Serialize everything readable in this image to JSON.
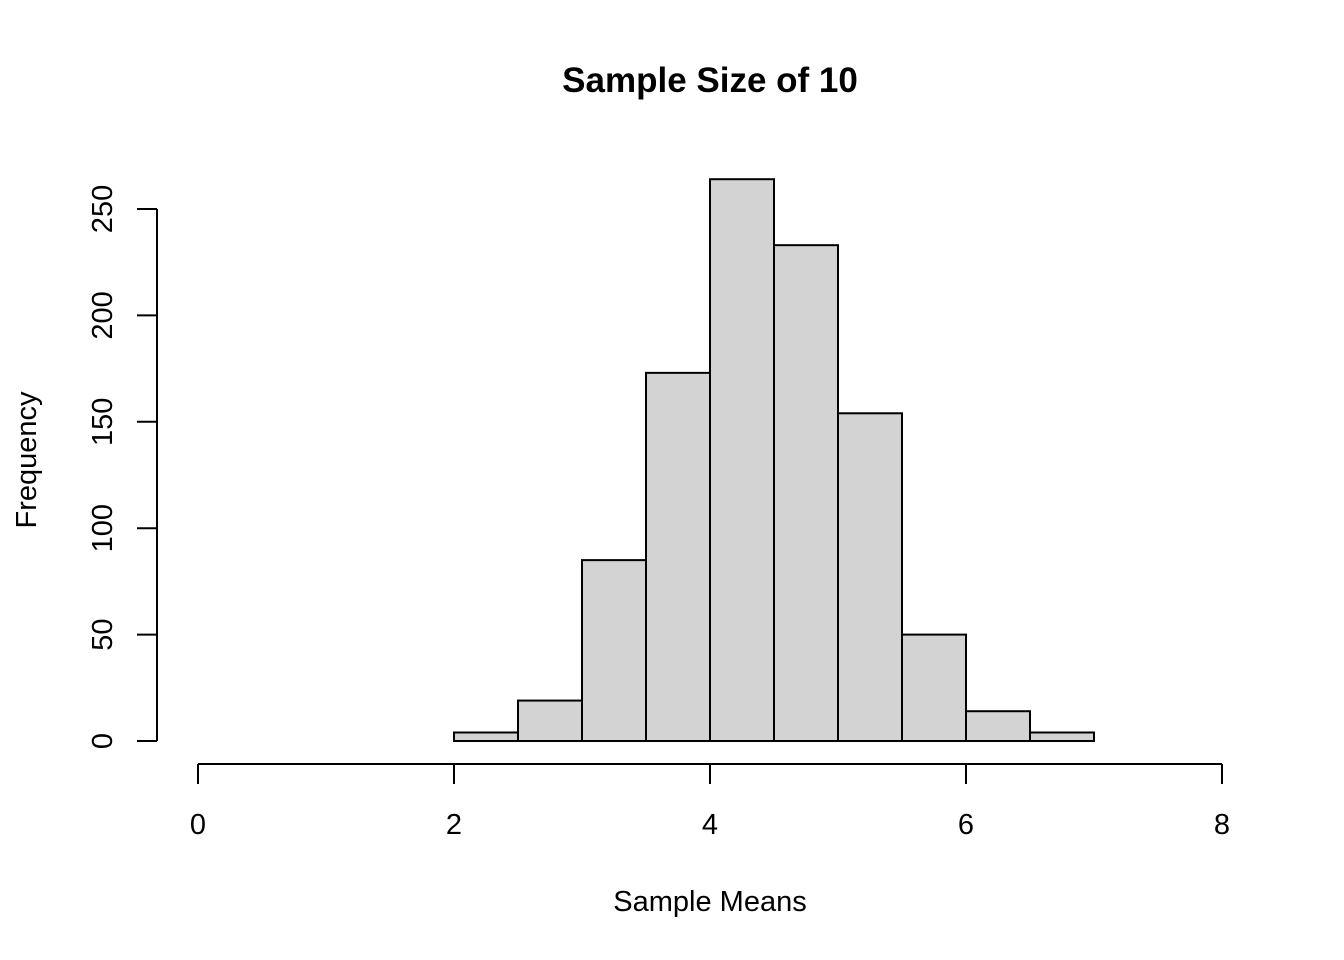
{
  "chart_data": {
    "type": "bar",
    "title": "Sample Size of 10",
    "xlabel": "Sample Means",
    "ylabel": "Frequency",
    "bin_edges": [
      2,
      2.5,
      3,
      3.5,
      4,
      4.5,
      5,
      5.5,
      6,
      6.5,
      7
    ],
    "values": [
      4,
      19,
      85,
      173,
      264,
      233,
      154,
      50,
      14,
      4
    ],
    "xlim": [
      0,
      8
    ],
    "ylim": [
      0,
      250
    ],
    "x_ticks": [
      0,
      2,
      4,
      6,
      8
    ],
    "y_ticks": [
      0,
      50,
      100,
      150,
      200,
      250
    ],
    "x_tick_labels": [
      "0",
      "2",
      "4",
      "6",
      "8"
    ],
    "y_tick_labels": [
      "0",
      "50",
      "100",
      "150",
      "200",
      "250"
    ],
    "bar_color": "#d3d3d3",
    "grid": false,
    "legend": "none"
  }
}
